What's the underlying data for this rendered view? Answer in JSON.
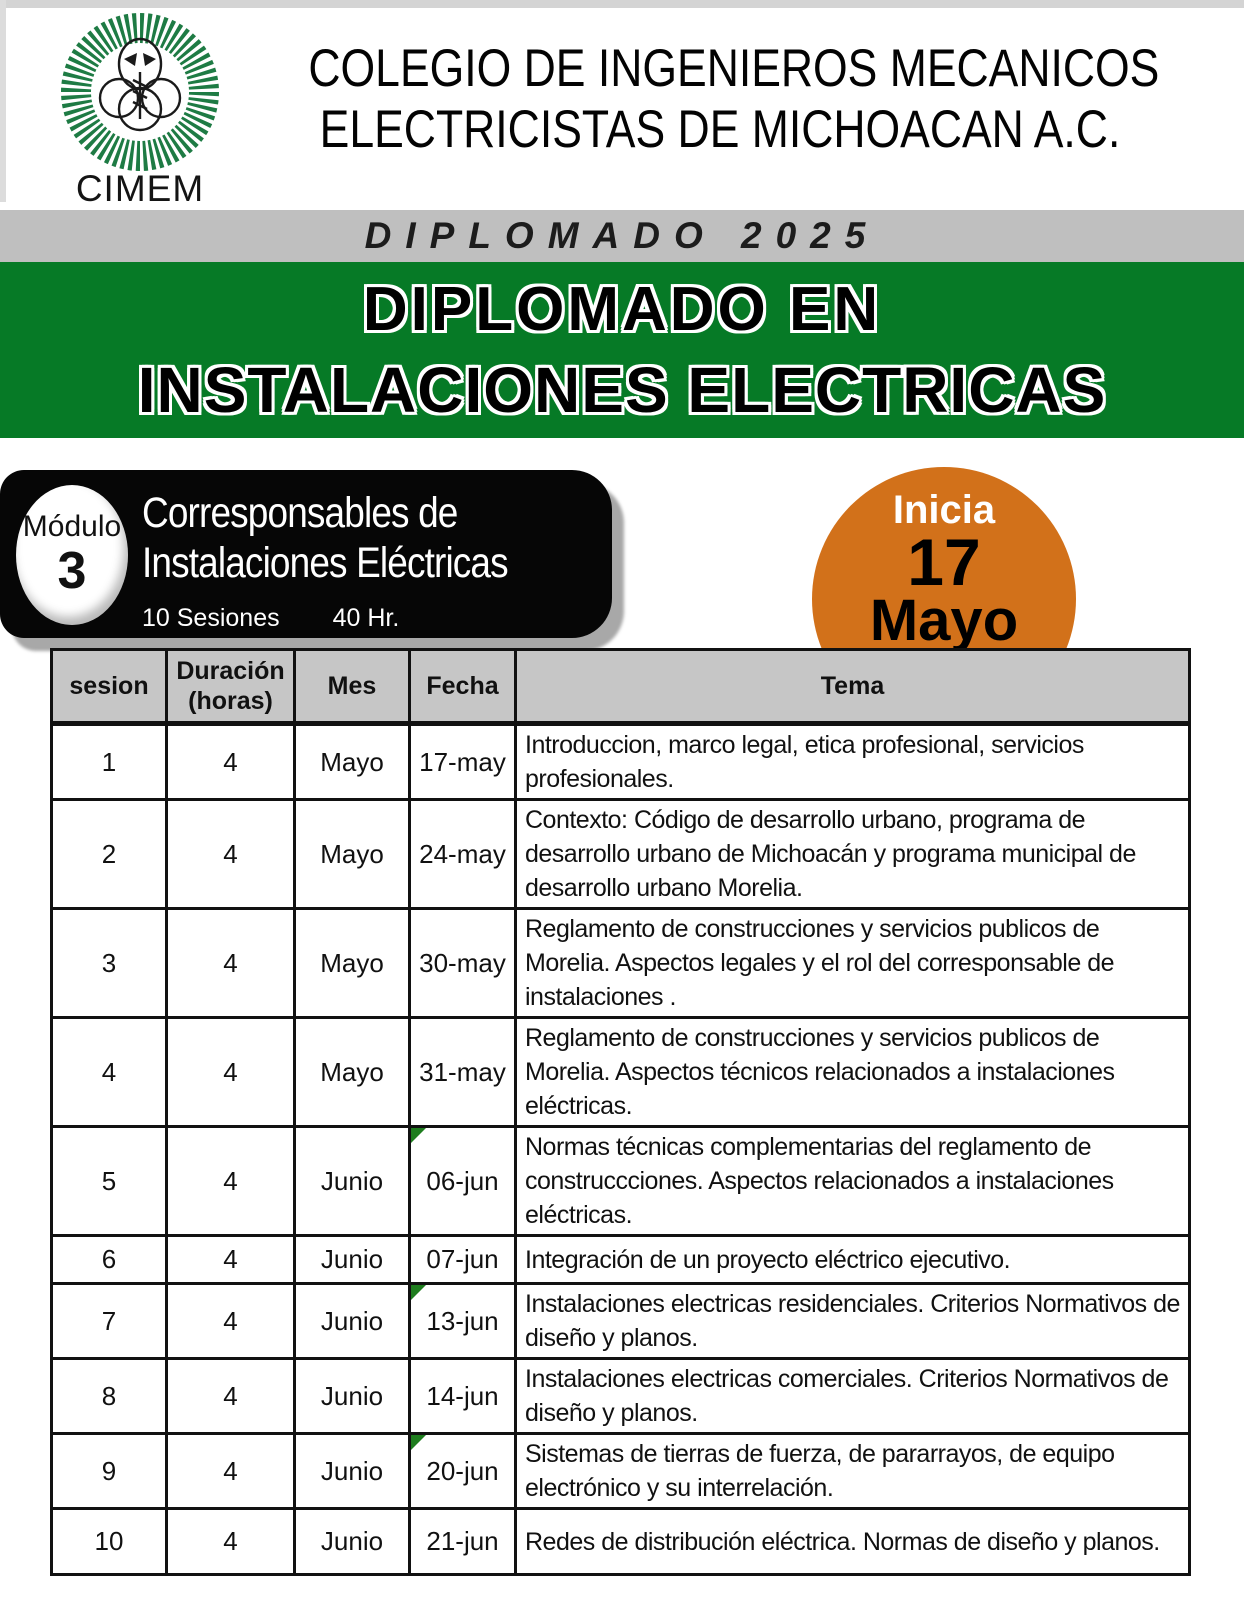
{
  "header": {
    "logo_text": "CIMEM",
    "org_name_line1": "COLEGIO DE INGENIEROS MECANICOS",
    "org_name_line2": "ELECTRICISTAS DE MICHOACAN A.C."
  },
  "banners": {
    "year_banner": "DIPLOMADO 2025",
    "title_line1": "DIPLOMADO EN",
    "title_line2": "INSTALACIONES ELECTRICAS"
  },
  "module_badge": {
    "label": "Módulo",
    "number": "3",
    "title_line1": "Corresponsables de",
    "title_line2": "Instalaciones Eléctricas",
    "sessions": "10 Sesiones",
    "hours": "40 Hr."
  },
  "start_badge": {
    "label": "Inicia",
    "day": "17",
    "month": "Mayo"
  },
  "colors": {
    "green": "#067a26",
    "orange": "#d2711a",
    "gray_band": "#bfbfbf",
    "header_gray": "#c6c6c6",
    "marker_green": "#1e7d1e",
    "logo_green": "#1e7b44"
  },
  "table": {
    "columns": [
      "sesion",
      "Duración (horas)",
      "Mes",
      "Fecha",
      "Tema"
    ],
    "rows": [
      {
        "sesion": "1",
        "duracion": "4",
        "mes": "Mayo",
        "fecha": "17-may",
        "marker": false,
        "tema": "Introduccion, marco legal,  etica profesional, servicios profesionales."
      },
      {
        "sesion": "2",
        "duracion": "4",
        "mes": "Mayo",
        "fecha": "24-may",
        "marker": false,
        "tema": "Contexto: Código de desarrollo urbano, programa de desarrollo urbano de Michoacán  y programa municipal de desarrollo urbano Morelia."
      },
      {
        "sesion": "3",
        "duracion": "4",
        "mes": "Mayo",
        "fecha": "30-may",
        "marker": false,
        "tema": "Reglamento de construcciones y servicios publicos de Morelia. Aspectos legales y el rol del corresponsable de instalaciones ."
      },
      {
        "sesion": "4",
        "duracion": "4",
        "mes": "Mayo",
        "fecha": "31-may",
        "marker": false,
        "tema": "Reglamento de construcciones y servicios publicos de Morelia. Aspectos técnicos relacionados a instalaciones eléctricas."
      },
      {
        "sesion": "5",
        "duracion": "4",
        "mes": "Junio",
        "fecha": "06-jun",
        "marker": true,
        "tema": "Normas técnicas complementarias del reglamento de construccciones. Aspectos relacionados a instalaciones eléctricas."
      },
      {
        "sesion": "6",
        "duracion": "4",
        "mes": "Junio",
        "fecha": "07-jun",
        "marker": false,
        "tema": "Integración de un proyecto eléctrico ejecutivo."
      },
      {
        "sesion": "7",
        "duracion": "4",
        "mes": "Junio",
        "fecha": "13-jun",
        "marker": true,
        "tema": "Instalaciones electricas residenciales. Criterios Normativos de diseño y planos."
      },
      {
        "sesion": "8",
        "duracion": "4",
        "mes": "Junio",
        "fecha": "14-jun",
        "marker": false,
        "tema": "Instalaciones electricas comerciales. Criterios Normativos de diseño y planos."
      },
      {
        "sesion": "9",
        "duracion": "4",
        "mes": "Junio",
        "fecha": "20-jun",
        "marker": true,
        "tema": "Sistemas de tierras de fuerza, de pararrayos,  de equipo electrónico y su interrelación."
      },
      {
        "sesion": "10",
        "duracion": "4",
        "mes": "Junio",
        "fecha": "21-jun",
        "marker": false,
        "tema": "Redes de distribución eléctrica. Normas de diseño y planos."
      }
    ]
  }
}
